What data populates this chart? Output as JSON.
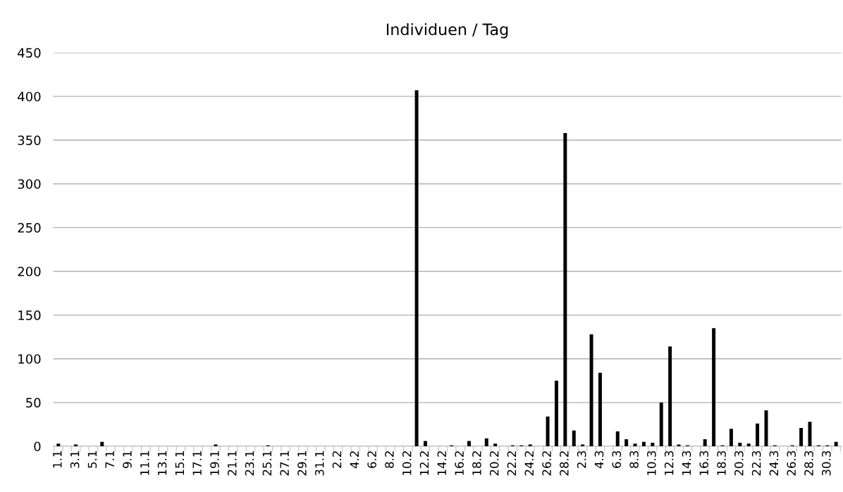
{
  "chart_data": {
    "type": "bar",
    "title": "Individuen / Tag",
    "categories": [
      "1.1",
      null,
      "3.1",
      null,
      "5.1",
      null,
      "7.1",
      null,
      "9.1",
      null,
      "11.1",
      null,
      "13.1",
      null,
      "15.1",
      null,
      "17.1",
      null,
      "19.1",
      null,
      "21.1",
      null,
      "23.1",
      null,
      "25.1",
      null,
      "27.1",
      null,
      "29.1",
      null,
      "31.1",
      null,
      "2.2",
      null,
      "4.2",
      null,
      "6.2",
      null,
      "8.2",
      null,
      "10.2",
      null,
      "12.2",
      null,
      "14.2",
      null,
      "16.2",
      null,
      "18.2",
      null,
      "20.2",
      null,
      "22.2",
      null,
      "24.2",
      null,
      "26.2",
      null,
      "28.2",
      null,
      "2.3",
      null,
      "4.3",
      null,
      "6.3",
      null,
      "8.3",
      null,
      "10.3",
      null,
      "12.3",
      null,
      "14.3",
      null,
      "16.3",
      null,
      "18.3",
      null,
      "20.3",
      null,
      "22.3",
      null,
      "24.3",
      null,
      "26.3",
      null,
      "28.3",
      null,
      "30.3",
      null
    ],
    "values": [
      3,
      0,
      2,
      0,
      0,
      5,
      0,
      0,
      0,
      0,
      0,
      0,
      0,
      0,
      0,
      0,
      0,
      0,
      2,
      0,
      0,
      0,
      0,
      0,
      1,
      0,
      0,
      0,
      0,
      0,
      0,
      0,
      0,
      0,
      0,
      0,
      0,
      0,
      0,
      0,
      0,
      407,
      6,
      0,
      0,
      1,
      0,
      6,
      0,
      9,
      3,
      0,
      1,
      1,
      2,
      0,
      34,
      75,
      358,
      18,
      2,
      128,
      84,
      0,
      17,
      8,
      3,
      5,
      4,
      50,
      114,
      2,
      1,
      0,
      8,
      135,
      1,
      20,
      4,
      3,
      26,
      41,
      1,
      0,
      1,
      21,
      28,
      1,
      1,
      5
    ],
    "color": "#000000",
    "ylim": [
      0,
      450
    ],
    "yticks": [
      0,
      50,
      100,
      150,
      200,
      250,
      300,
      350,
      400,
      450
    ],
    "grid": "y"
  }
}
